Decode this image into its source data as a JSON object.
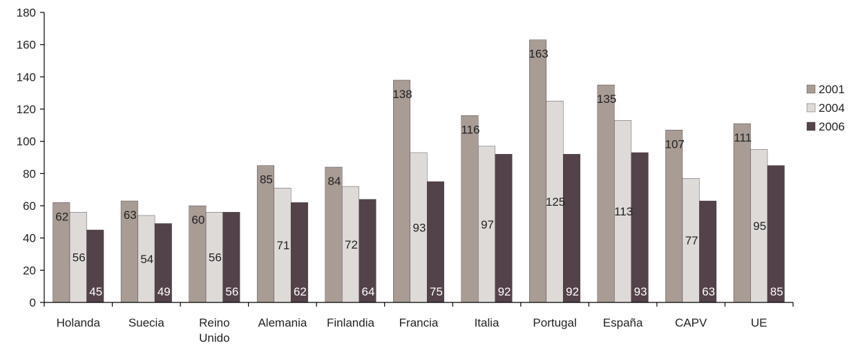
{
  "chart_data": {
    "type": "bar",
    "categories": [
      "Holanda",
      "Suecia",
      "Reino Unido",
      "Alemania",
      "Finlandia",
      "Francia",
      "Italia",
      "Portugal",
      "España",
      "CAPV",
      "UE"
    ],
    "category_lines": [
      [
        "Holanda"
      ],
      [
        "Suecia"
      ],
      [
        "Reino",
        "Unido"
      ],
      [
        "Alemania"
      ],
      [
        "Finlandia"
      ],
      [
        "Francia"
      ],
      [
        "Italia"
      ],
      [
        "Portugal"
      ],
      [
        "España"
      ],
      [
        "CAPV"
      ],
      [
        "UE"
      ]
    ],
    "series": [
      {
        "name": "2001",
        "color": "#a89c95",
        "values": [
          62,
          63,
          60,
          85,
          84,
          138,
          116,
          163,
          135,
          107,
          111
        ],
        "labels": [
          "62",
          "63",
          "60",
          "85",
          "84",
          "138",
          "116",
          "163",
          "135",
          "107",
          "111"
        ]
      },
      {
        "name": "2004",
        "color": "#dedad8",
        "values": [
          56,
          54,
          56,
          71,
          72,
          93,
          97,
          125,
          113,
          77,
          95
        ],
        "labels": [
          "56",
          "54",
          "56",
          "71",
          "72",
          "93",
          "97",
          "125",
          "113",
          "77",
          "95"
        ]
      },
      {
        "name": "2006",
        "color": "#54424a",
        "values": [
          45,
          49,
          56,
          62,
          64,
          75,
          92,
          92,
          93,
          63,
          85
        ],
        "labels": [
          "45",
          "49",
          "56",
          "62",
          "64",
          "75",
          "92",
          "92",
          "93",
          "63",
          "85"
        ]
      }
    ],
    "ylim": [
      0,
      180
    ],
    "yticks": [
      "0",
      "20",
      "40",
      "60",
      "80",
      "100",
      "120",
      "140",
      "160",
      "180"
    ],
    "legend_position": "right",
    "grid": false,
    "title": "",
    "xlabel": "",
    "ylabel": ""
  }
}
